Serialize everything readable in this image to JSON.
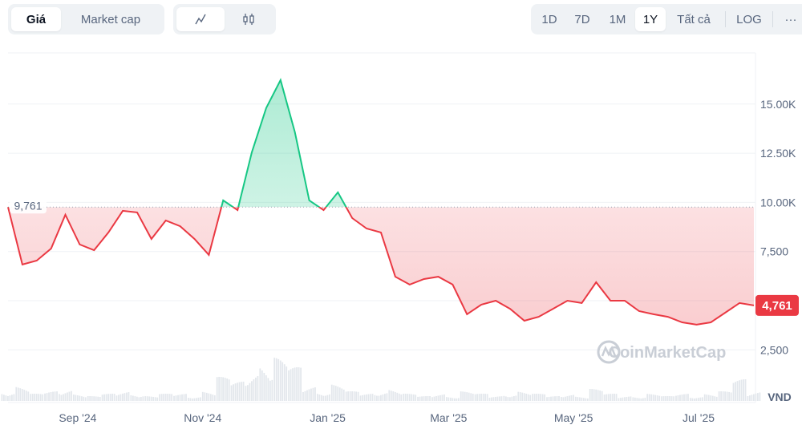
{
  "toolbar": {
    "metric_tabs": [
      {
        "label": "Giá",
        "selected": true
      },
      {
        "label": "Market cap",
        "selected": false
      }
    ],
    "chart_type_tabs": [
      {
        "icon": "line-chart-icon",
        "selected": true
      },
      {
        "icon": "candlestick-icon",
        "selected": false
      }
    ],
    "range_tabs": [
      {
        "label": "1D"
      },
      {
        "label": "7D"
      },
      {
        "label": "1M"
      },
      {
        "label": "1Y",
        "selected": true
      },
      {
        "label": "Tất cả"
      }
    ],
    "log_label": "LOG",
    "more_label": "···"
  },
  "watermark": "CoinMarketCap",
  "colors": {
    "up": "#16c784",
    "down": "#ea3943",
    "grid": "#eff2f5",
    "axis_text": "#58667e",
    "volume": "#e3e7ec"
  },
  "chart_data": {
    "type": "area",
    "currency": "VND",
    "baseline_value": 9761,
    "baseline_label": "9,761",
    "current_value": 4761,
    "current_label": "4,761",
    "ylim": [
      0,
      17500
    ],
    "y_ticks": [
      {
        "value": 2500,
        "label": "2,500"
      },
      {
        "value": 7500,
        "label": "7,500"
      },
      {
        "value": 10000,
        "label": "10.00K"
      },
      {
        "value": 12500,
        "label": "12.50K"
      },
      {
        "value": 15000,
        "label": "15.00K"
      }
    ],
    "x_ticks": [
      {
        "date": "2024-09-01",
        "label": "Sep '24"
      },
      {
        "date": "2024-11-01",
        "label": "Nov '24"
      },
      {
        "date": "2025-01-01",
        "label": "Jan '25"
      },
      {
        "date": "2025-03-01",
        "label": "Mar '25"
      },
      {
        "date": "2025-05-01",
        "label": "May '25"
      },
      {
        "date": "2025-07-01",
        "label": "Jul '25"
      }
    ],
    "grid": true,
    "dates": [
      "2024-07-29",
      "2024-08-05",
      "2024-08-12",
      "2024-08-19",
      "2024-08-26",
      "2024-09-02",
      "2024-09-09",
      "2024-09-16",
      "2024-09-23",
      "2024-09-30",
      "2024-10-07",
      "2024-10-14",
      "2024-10-21",
      "2024-10-28",
      "2024-11-04",
      "2024-11-11",
      "2024-11-18",
      "2024-11-25",
      "2024-12-02",
      "2024-12-09",
      "2024-12-16",
      "2024-12-23",
      "2024-12-30",
      "2025-01-06",
      "2025-01-13",
      "2025-01-20",
      "2025-01-27",
      "2025-02-03",
      "2025-02-10",
      "2025-02-17",
      "2025-02-24",
      "2025-03-03",
      "2025-03-10",
      "2025-03-17",
      "2025-03-24",
      "2025-03-31",
      "2025-04-07",
      "2025-04-14",
      "2025-04-21",
      "2025-04-28",
      "2025-05-05",
      "2025-05-12",
      "2025-05-19",
      "2025-05-26",
      "2025-06-02",
      "2025-06-09",
      "2025-06-16",
      "2025-06-23",
      "2025-06-30",
      "2025-07-07",
      "2025-07-14",
      "2025-07-21",
      "2025-07-28"
    ],
    "values": [
      9761,
      6840,
      7040,
      7650,
      9370,
      7860,
      7570,
      8470,
      9570,
      9490,
      8140,
      9080,
      8790,
      8140,
      7330,
      10100,
      9610,
      12550,
      14800,
      16220,
      13570,
      10100,
      9610,
      10510,
      9200,
      8670,
      8470,
      6220,
      5820,
      6100,
      6220,
      5820,
      4310,
      4800,
      5000,
      4590,
      3980,
      4180,
      4590,
      5000,
      4880,
      5940,
      5000,
      5000,
      4470,
      4310,
      4180,
      3900,
      3780,
      3900,
      4390,
      4880,
      4761
    ],
    "volume_relative": [
      0.2,
      0.3,
      0.15,
      0.2,
      0.25,
      0.15,
      0.1,
      0.15,
      0.2,
      0.15,
      0.1,
      0.15,
      0.15,
      0.1,
      0.2,
      0.5,
      0.4,
      0.6,
      0.8,
      0.9,
      0.7,
      0.3,
      0.2,
      0.35,
      0.2,
      0.15,
      0.2,
      0.25,
      0.15,
      0.1,
      0.15,
      0.1,
      0.2,
      0.15,
      0.1,
      0.15,
      0.2,
      0.15,
      0.1,
      0.15,
      0.1,
      0.25,
      0.15,
      0.1,
      0.1,
      0.15,
      0.1,
      0.15,
      0.1,
      0.15,
      0.2,
      0.45,
      0.2
    ]
  }
}
